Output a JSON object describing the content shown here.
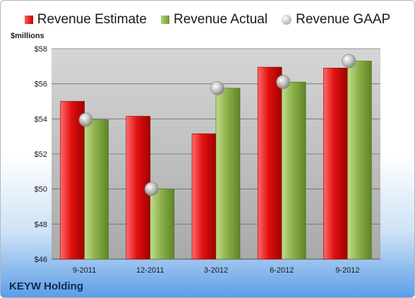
{
  "legend": {
    "estimate": "Revenue Estimate",
    "actual": "Revenue Actual",
    "gaap": "Revenue GAAP"
  },
  "company": "KEYW Holding",
  "colors": {
    "estimate": "#d40000",
    "actual": "#8db24a",
    "gaap": "#c0c0c0",
    "plot_background": "#c8c8c8"
  },
  "chart_data": {
    "type": "bar",
    "title": "",
    "xlabel": "",
    "ylabel": "$millions",
    "ylim": [
      46,
      58
    ],
    "yticks": [
      46,
      48,
      50,
      52,
      54,
      56,
      58
    ],
    "ytick_labels": [
      "$46",
      "$48",
      "$50",
      "$52",
      "$54",
      "$56",
      "$58"
    ],
    "grid": true,
    "legend_position": "top",
    "categories": [
      "9-2011",
      "12-2011",
      "3-2012",
      "6-2012",
      "9-2012"
    ],
    "series": [
      {
        "name": "Revenue Estimate",
        "kind": "bar",
        "values": [
          55.0,
          54.15,
          53.15,
          56.95,
          56.9
        ]
      },
      {
        "name": "Revenue Actual",
        "kind": "bar",
        "values": [
          53.95,
          50.0,
          55.75,
          56.1,
          57.3
        ]
      },
      {
        "name": "Revenue GAAP",
        "kind": "marker",
        "values": [
          53.95,
          50.0,
          55.75,
          56.1,
          57.3
        ]
      }
    ]
  }
}
